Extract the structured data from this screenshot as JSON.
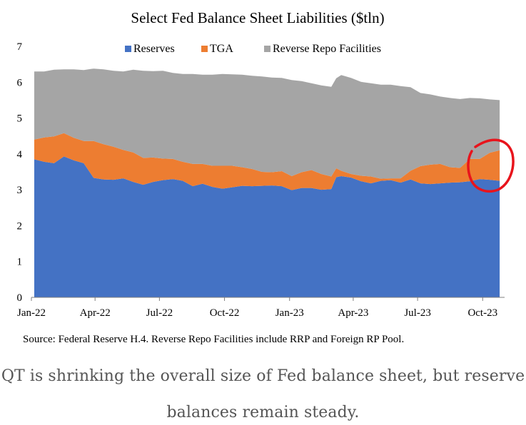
{
  "colors": {
    "reserves": "#4472c4",
    "tga": "#ed7d31",
    "reverse_repo": "#a5a5a5",
    "highlight_circle": "#e8141c",
    "caption_text": "#555555"
  },
  "chart_data": {
    "type": "area",
    "stacked": true,
    "title": "Select Fed Balance Sheet Liabilities ($tln)",
    "xlabel": "",
    "ylabel": "",
    "ylim": [
      0,
      7
    ],
    "yticks": [
      0,
      1,
      2,
      3,
      4,
      5,
      6,
      7
    ],
    "grid": false,
    "legend_position": "top",
    "x_range": [
      "2022-01-01",
      "2023-11-01"
    ],
    "xticks": [
      {
        "date": "2022-01-01",
        "label": "Jan-22"
      },
      {
        "date": "2022-04-01",
        "label": "Apr-22"
      },
      {
        "date": "2022-07-01",
        "label": "Jul-22"
      },
      {
        "date": "2022-10-01",
        "label": "Oct-22"
      },
      {
        "date": "2023-01-01",
        "label": "Jan-23"
      },
      {
        "date": "2023-04-01",
        "label": "Apr-23"
      },
      {
        "date": "2023-07-01",
        "label": "Jul-23"
      },
      {
        "date": "2023-10-01",
        "label": "Oct-23"
      }
    ],
    "x": [
      "2022-01-05",
      "2022-01-19",
      "2022-02-02",
      "2022-02-16",
      "2022-03-02",
      "2022-03-16",
      "2022-03-30",
      "2022-04-13",
      "2022-04-27",
      "2022-05-11",
      "2022-05-25",
      "2022-06-08",
      "2022-06-22",
      "2022-07-06",
      "2022-07-20",
      "2022-08-03",
      "2022-08-17",
      "2022-08-31",
      "2022-09-14",
      "2022-09-28",
      "2022-10-12",
      "2022-10-26",
      "2022-11-09",
      "2022-11-23",
      "2022-12-07",
      "2022-12-21",
      "2023-01-04",
      "2023-01-18",
      "2023-02-01",
      "2023-02-15",
      "2023-03-01",
      "2023-03-08",
      "2023-03-15",
      "2023-03-29",
      "2023-04-12",
      "2023-04-26",
      "2023-05-10",
      "2023-05-24",
      "2023-06-07",
      "2023-06-21",
      "2023-07-05",
      "2023-07-19",
      "2023-08-02",
      "2023-08-16",
      "2023-08-30",
      "2023-09-13",
      "2023-09-27",
      "2023-10-11",
      "2023-10-25"
    ],
    "series": [
      {
        "name": "Reserves",
        "values": [
          3.85,
          3.78,
          3.74,
          3.93,
          3.82,
          3.74,
          3.33,
          3.29,
          3.28,
          3.32,
          3.22,
          3.14,
          3.22,
          3.27,
          3.3,
          3.25,
          3.1,
          3.17,
          3.08,
          3.03,
          3.07,
          3.11,
          3.1,
          3.11,
          3.12,
          3.1,
          2.99,
          3.05,
          3.05,
          3.0,
          3.02,
          3.35,
          3.38,
          3.34,
          3.24,
          3.18,
          3.25,
          3.27,
          3.2,
          3.29,
          3.18,
          3.16,
          3.18,
          3.2,
          3.21,
          3.24,
          3.3,
          3.28,
          3.25
        ]
      },
      {
        "name": "TGA",
        "values": [
          0.55,
          0.68,
          0.75,
          0.65,
          0.63,
          0.62,
          1.03,
          0.98,
          0.92,
          0.79,
          0.82,
          0.75,
          0.68,
          0.6,
          0.56,
          0.53,
          0.62,
          0.55,
          0.59,
          0.64,
          0.6,
          0.52,
          0.48,
          0.39,
          0.37,
          0.42,
          0.39,
          0.44,
          0.5,
          0.44,
          0.35,
          0.25,
          0.15,
          0.1,
          0.15,
          0.19,
          0.06,
          0.05,
          0.12,
          0.24,
          0.48,
          0.54,
          0.54,
          0.43,
          0.4,
          0.62,
          0.56,
          0.75,
          0.85
        ]
      },
      {
        "name": "Reverse Repo Facilities",
        "values": [
          1.9,
          1.84,
          1.86,
          1.78,
          1.91,
          1.98,
          2.02,
          2.09,
          2.12,
          2.19,
          2.31,
          2.43,
          2.41,
          2.45,
          2.4,
          2.45,
          2.51,
          2.49,
          2.54,
          2.56,
          2.55,
          2.58,
          2.6,
          2.66,
          2.64,
          2.6,
          2.68,
          2.54,
          2.42,
          2.47,
          2.5,
          2.51,
          2.67,
          2.68,
          2.62,
          2.6,
          2.62,
          2.61,
          2.57,
          2.33,
          2.04,
          1.96,
          1.88,
          1.93,
          1.92,
          1.7,
          1.69,
          1.49,
          1.4
        ]
      }
    ]
  },
  "annotation": "red hand-drawn circle around the Oct-23 TGA and Reserves area",
  "source_note": "Source: Federal Reserve H.4. Reverse Repo Facilities include RRP and Foreign RP Pool.",
  "caption": {
    "line1": "QT is shrinking the overall size of Fed balance sheet, but reserve",
    "line2": "balances remain steady."
  }
}
